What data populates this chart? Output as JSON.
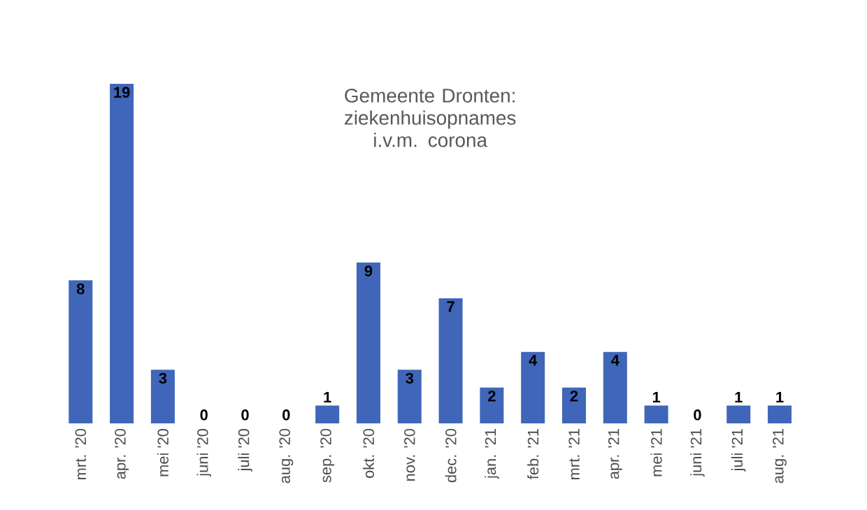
{
  "chart_data": {
    "type": "bar",
    "title": "Gemeente Dronten: ziekenhuisopnames i.v.m. corona",
    "categories": [
      "mrt. '20",
      "apr. '20",
      "mei '20",
      "juni '20",
      "juli '20",
      "aug. '20",
      "sep. '20",
      "okt. '20",
      "nov. '20",
      "dec. '20",
      "jan. '21",
      "feb. '21",
      "mrt. '21",
      "apr. '21",
      "mei '21",
      "juni '21",
      "juli '21",
      "aug. '21"
    ],
    "values": [
      8,
      19,
      3,
      0,
      0,
      0,
      1,
      9,
      3,
      7,
      2,
      4,
      2,
      4,
      1,
      0,
      1,
      1
    ],
    "color": "#3f66b8",
    "data_labels": true
  }
}
